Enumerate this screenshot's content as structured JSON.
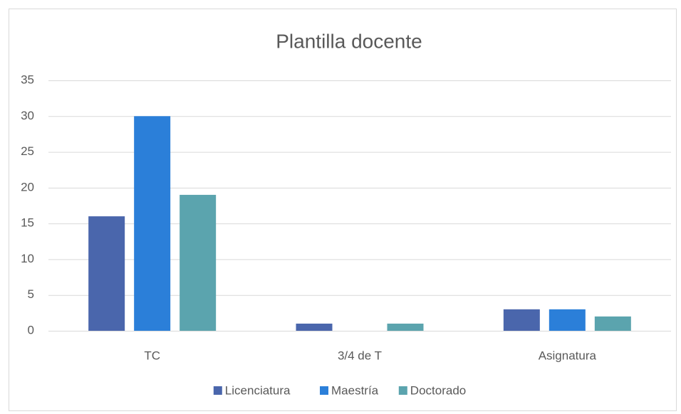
{
  "chart_data": {
    "type": "bar",
    "title": "Plantilla docente",
    "categories": [
      "TC",
      "3/4 de T",
      "Asignatura"
    ],
    "series": [
      {
        "name": "Licenciatura",
        "color": "#4a66ac",
        "values": [
          16,
          1,
          3
        ]
      },
      {
        "name": "Maestría",
        "color": "#2b7fd9",
        "values": [
          30,
          0,
          3
        ]
      },
      {
        "name": "Doctorado",
        "color": "#5ba4ae",
        "values": [
          19,
          1,
          2
        ]
      }
    ],
    "ylim": [
      0,
      35
    ],
    "yticks": [
      0,
      5,
      10,
      15,
      20,
      25,
      30,
      35
    ],
    "grid": true,
    "legend": "bottom"
  }
}
